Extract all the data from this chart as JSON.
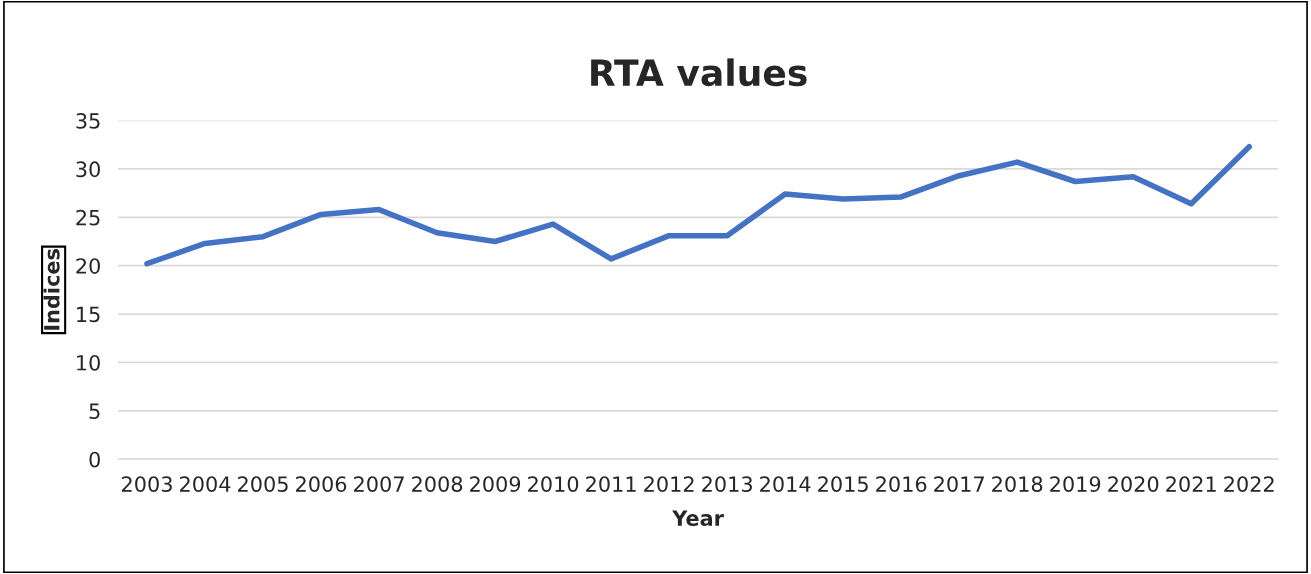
{
  "chart_data": {
    "type": "line",
    "title": "RTA values",
    "xlabel": "Year",
    "ylabel": "Indices",
    "categories": [
      "2003",
      "2004",
      "2005",
      "2006",
      "2007",
      "2008",
      "2009",
      "2010",
      "2011",
      "2012",
      "2013",
      "2014",
      "2015",
      "2016",
      "2017",
      "2018",
      "2019",
      "2020",
      "2021",
      "2022"
    ],
    "series": [
      {
        "color": "#4472c4",
        "values": [
          20.2,
          22.3,
          23.0,
          25.3,
          25.8,
          23.4,
          22.5,
          24.3,
          20.7,
          23.1,
          23.1,
          27.4,
          26.9,
          27.1,
          29.3,
          30.7,
          28.7,
          29.2,
          26.4,
          32.3
        ]
      }
    ],
    "ylim": [
      0,
      35
    ],
    "yticks": [
      0,
      5,
      10,
      15,
      20,
      25,
      30,
      35
    ],
    "grid": "y",
    "marker": "none",
    "line_style": "solid"
  }
}
